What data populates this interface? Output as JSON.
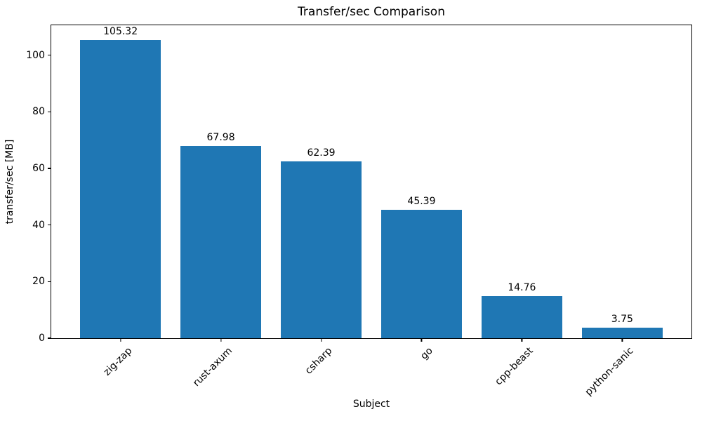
{
  "chart_data": {
    "type": "bar",
    "title": "Transfer/sec Comparison",
    "xlabel": "Subject",
    "ylabel": "transfer/sec [MB]",
    "categories": [
      "zig-zap",
      "rust-axum",
      "csharp",
      "go",
      "cpp-beast",
      "python-sanic"
    ],
    "values": [
      105.32,
      67.98,
      62.39,
      45.39,
      14.76,
      3.75
    ],
    "value_labels": [
      "105.32",
      "67.98",
      "62.39",
      "45.39",
      "14.76",
      "3.75"
    ],
    "yticks": [
      0,
      20,
      40,
      60,
      80,
      100
    ],
    "ylim": [
      0,
      110.59
    ],
    "xlim_units": [
      -0.69,
      5.69
    ],
    "bar_width_units": 0.8,
    "bar_color": "#1f77b4",
    "grid": false,
    "legend_position": "none"
  }
}
